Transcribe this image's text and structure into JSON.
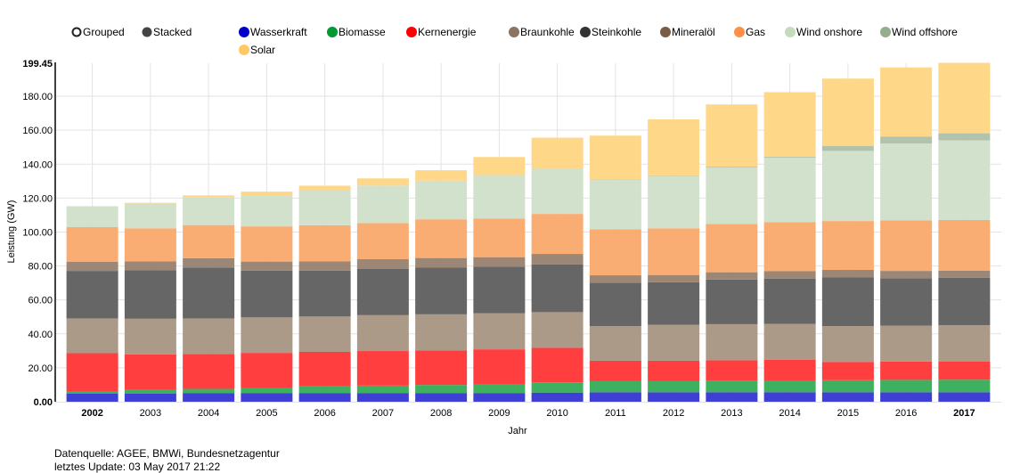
{
  "chart_data": {
    "type": "bar",
    "mode": "stacked",
    "title": "",
    "xlabel": "Jahr",
    "ylabel": "Leistung (GW)",
    "ylim": [
      0,
      199.45
    ],
    "y_ticks": [
      "0.00",
      "20.00",
      "40.00",
      "60.00",
      "80.00",
      "100.00",
      "120.00",
      "140.00",
      "160.00",
      "180.00",
      "199.45"
    ],
    "y_tick_values": [
      0,
      20,
      40,
      60,
      80,
      100,
      120,
      140,
      160,
      180,
      199.45
    ],
    "grid": true,
    "legend_position": "top",
    "mode_controls": [
      {
        "label": "Grouped",
        "selected": false
      },
      {
        "label": "Stacked",
        "selected": true
      }
    ],
    "categories": [
      "2002",
      "2003",
      "2004",
      "2005",
      "2006",
      "2007",
      "2008",
      "2009",
      "2010",
      "2011",
      "2012",
      "2013",
      "2014",
      "2015",
      "2016",
      "2017"
    ],
    "bold_categories": [
      "2002",
      "2017"
    ],
    "series": [
      {
        "name": "Wasserkraft",
        "color": "#0000cc",
        "fill": "#3f3fd6",
        "values": [
          4.9,
          4.9,
          5.0,
          5.0,
          5.0,
          5.0,
          5.0,
          5.0,
          5.4,
          5.6,
          5.6,
          5.6,
          5.6,
          5.6,
          5.6,
          5.6
        ]
      },
      {
        "name": "Biomasse",
        "color": "#009933",
        "fill": "#3fb060",
        "values": [
          1.4,
          2.0,
          2.6,
          3.4,
          4.0,
          4.5,
          4.9,
          5.5,
          6.0,
          6.5,
          6.5,
          6.8,
          7.0,
          7.1,
          7.3,
          7.4
        ]
      },
      {
        "name": "Kernenergie",
        "color": "#ff0000",
        "fill": "#ff3f3f",
        "values": [
          22.3,
          21.0,
          20.6,
          20.4,
          20.4,
          20.4,
          20.4,
          20.4,
          20.4,
          12.1,
          12.1,
          12.1,
          12.1,
          10.8,
          10.8,
          10.8
        ]
      },
      {
        "name": "Braunkohle",
        "color": "#8c7460",
        "fill": "#ac9a88",
        "values": [
          20.5,
          21.0,
          20.9,
          20.9,
          20.8,
          21.1,
          21.2,
          21.2,
          21.0,
          20.3,
          21.2,
          21.2,
          21.2,
          21.1,
          21.1,
          21.3
        ]
      },
      {
        "name": "Steinkohle",
        "color": "#333333",
        "fill": "#666666",
        "values": [
          28.0,
          28.5,
          30.0,
          27.5,
          27.0,
          27.4,
          27.5,
          27.4,
          28.2,
          25.7,
          25.0,
          26.3,
          26.7,
          28.8,
          28.0,
          27.9
        ]
      },
      {
        "name": "Mineralöl",
        "color": "#7a5c44",
        "fill": "#9c8776",
        "values": [
          5.3,
          5.3,
          5.5,
          5.4,
          5.6,
          5.6,
          5.7,
          5.7,
          6.1,
          4.3,
          4.3,
          4.3,
          4.3,
          4.3,
          4.3,
          4.3
        ]
      },
      {
        "name": "Gas",
        "color": "#ff9147",
        "fill": "#f9ad72",
        "values": [
          20.5,
          19.5,
          19.5,
          20.7,
          21.2,
          21.3,
          22.8,
          22.7,
          23.6,
          27.2,
          27.5,
          28.4,
          28.9,
          28.8,
          29.7,
          29.8
        ]
      },
      {
        "name": "Wind onshore",
        "color": "#c4dcbc",
        "fill": "#d1e1cb",
        "values": [
          12.0,
          14.6,
          16.4,
          18.4,
          20.4,
          22.1,
          22.8,
          25.6,
          26.8,
          29.0,
          30.9,
          33.3,
          37.9,
          41.3,
          45.4,
          46.9
        ]
      },
      {
        "name": "Wind offshore",
        "color": "#94ae8e",
        "fill": "#b1c2ad",
        "values": [
          0.0,
          0.0,
          0.0,
          0.0,
          0.0,
          0.0,
          0.0,
          0.1,
          0.1,
          0.2,
          0.3,
          0.5,
          0.6,
          3.0,
          4.1,
          4.2
        ]
      },
      {
        "name": "Solar",
        "color": "#ffc966",
        "fill": "#ffd788",
        "values": [
          0.3,
          0.4,
          1.1,
          2.1,
          2.9,
          4.2,
          6.1,
          10.6,
          18.0,
          25.9,
          33.0,
          36.7,
          38.1,
          39.6,
          40.7,
          41.5
        ]
      }
    ]
  },
  "footer": {
    "source": "Datenquelle: AGEE, BMWi, Bundesnetzagentur",
    "update": "letztes Update: 03 May 2017 21:22"
  }
}
